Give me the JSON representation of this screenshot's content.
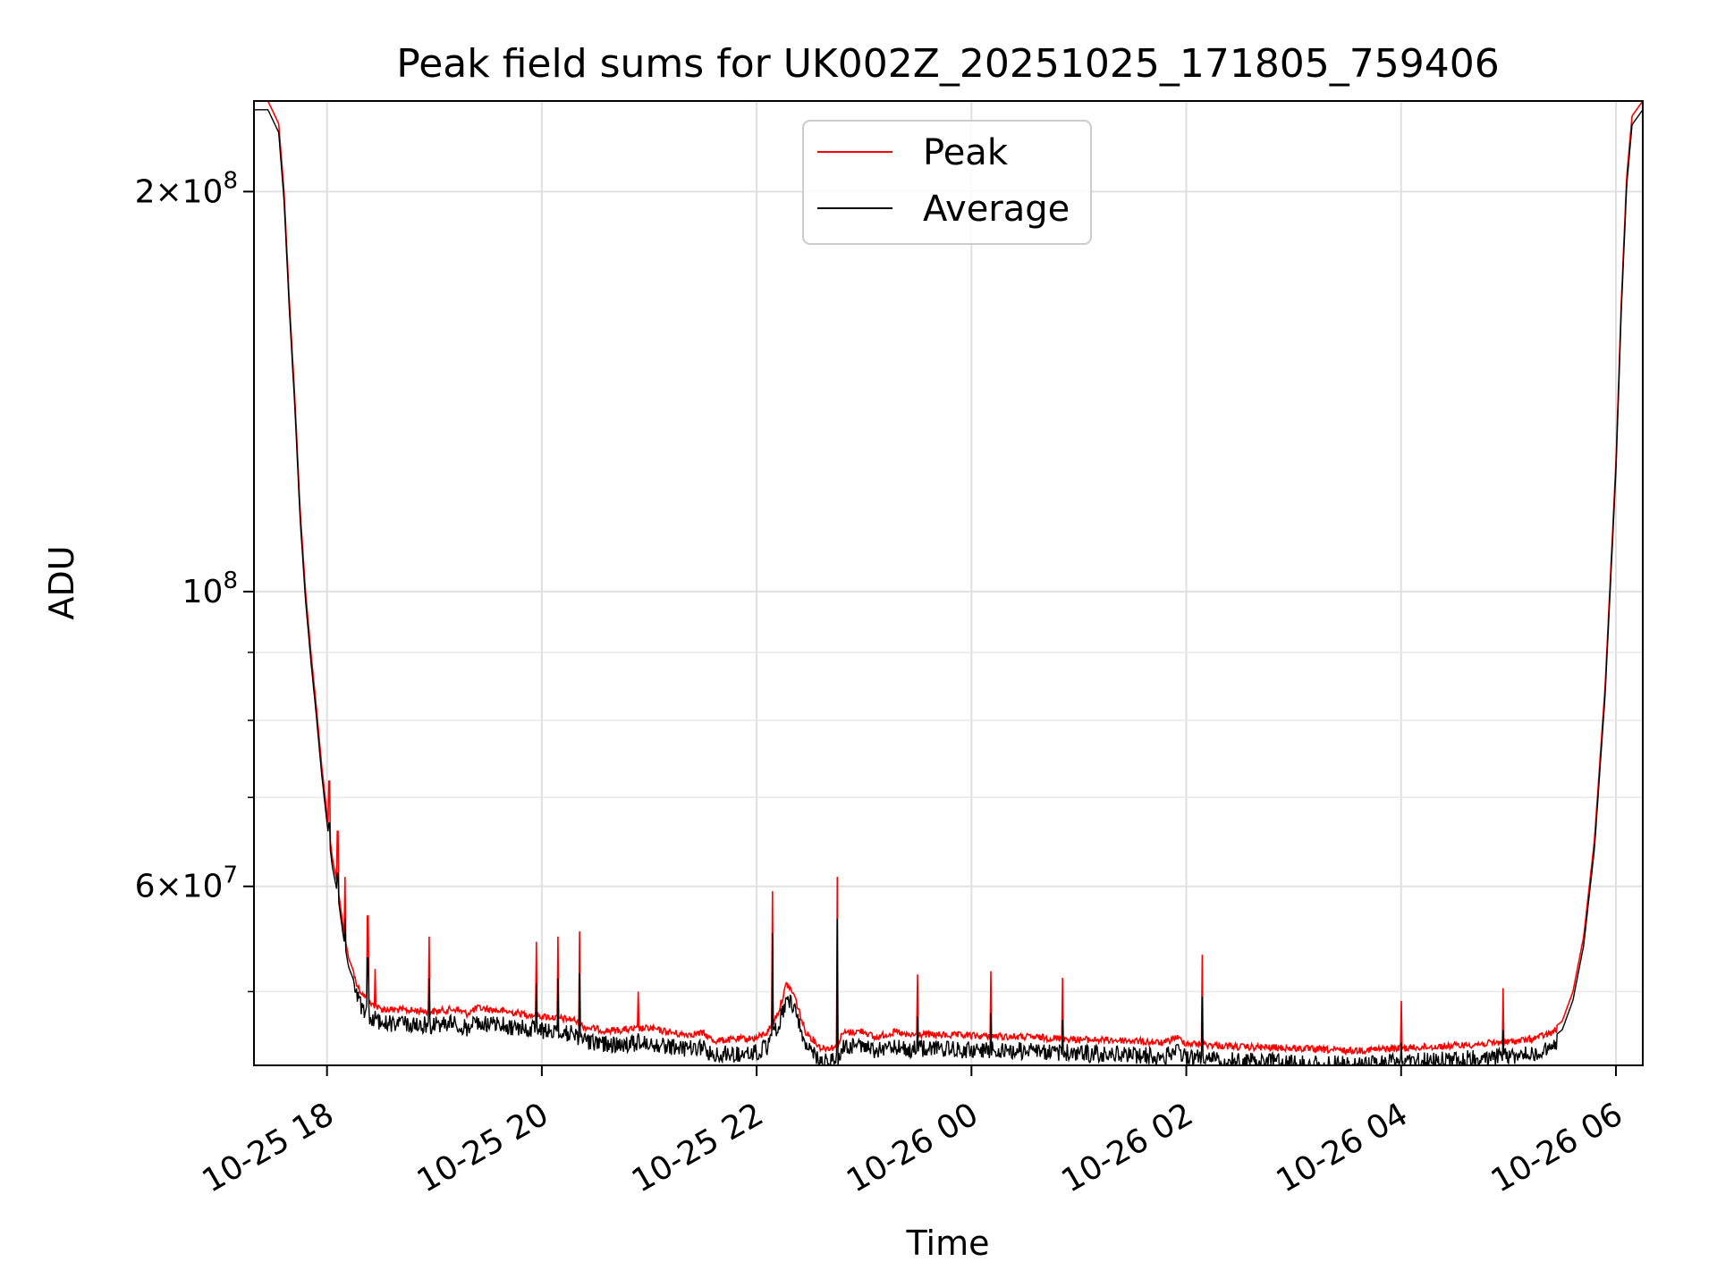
{
  "chart_data": {
    "type": "line",
    "title": "Peak field sums for UK002Z_20251025_171805_759406",
    "xlabel": "Time",
    "ylabel": "ADU",
    "yscale": "log",
    "ylim": [
      44000000,
      234000000
    ],
    "xlim_hours": [
      -0.68,
      12.25
    ],
    "grid": true,
    "legend_position": "top-center",
    "x_ticks": [
      {
        "label": "10-25 18",
        "hours": 0
      },
      {
        "label": "10-25 20",
        "hours": 2
      },
      {
        "label": "10-25 22",
        "hours": 4
      },
      {
        "label": "10-26 00",
        "hours": 6
      },
      {
        "label": "10-26 02",
        "hours": 8
      },
      {
        "label": "10-26 04",
        "hours": 10
      },
      {
        "label": "10-26 06",
        "hours": 12
      }
    ],
    "y_major_ticks": [
      {
        "value": 200000000,
        "mantissa": "2",
        "exponent": "8"
      },
      {
        "value": 100000000,
        "mantissa": "",
        "exponent": "8"
      },
      {
        "value": 60000000,
        "mantissa": "6",
        "exponent": "7"
      }
    ],
    "y_minor_ticks": [
      50000000,
      70000000,
      80000000,
      90000000
    ],
    "series": [
      {
        "name": "Peak",
        "color": "#ff0000",
        "baseline": [
          [
            -0.68,
            234000000
          ],
          [
            -0.55,
            234000000
          ],
          [
            -0.45,
            225000000
          ],
          [
            -0.4,
            200000000
          ],
          [
            -0.35,
            165000000
          ],
          [
            -0.3,
            140000000
          ],
          [
            -0.25,
            115000000
          ],
          [
            -0.2,
            100000000
          ],
          [
            -0.15,
            90000000
          ],
          [
            -0.1,
            82000000
          ],
          [
            -0.05,
            74000000
          ],
          [
            0,
            68000000
          ],
          [
            0.05,
            63000000
          ],
          [
            0.1,
            60000000
          ],
          [
            0.15,
            56000000
          ],
          [
            0.2,
            53000000
          ],
          [
            0.3,
            50500000
          ],
          [
            0.4,
            49300000
          ],
          [
            0.5,
            48800000
          ],
          [
            1.0,
            48600000
          ],
          [
            1.2,
            48800000
          ],
          [
            1.3,
            48400000
          ],
          [
            1.4,
            48900000
          ],
          [
            2.0,
            48200000
          ],
          [
            2.3,
            47900000
          ],
          [
            2.4,
            47300000
          ],
          [
            2.6,
            47000000
          ],
          [
            3.0,
            47200000
          ],
          [
            3.3,
            46700000
          ],
          [
            3.5,
            46800000
          ],
          [
            3.6,
            46200000
          ],
          [
            3.8,
            46300000
          ],
          [
            4.0,
            46400000
          ],
          [
            4.1,
            46900000
          ],
          [
            4.2,
            48500000
          ],
          [
            4.28,
            51000000
          ],
          [
            4.35,
            50000000
          ],
          [
            4.45,
            47000000
          ],
          [
            4.6,
            45600000
          ],
          [
            4.75,
            45700000
          ],
          [
            4.8,
            46800000
          ],
          [
            5.0,
            47000000
          ],
          [
            5.1,
            46400000
          ],
          [
            5.2,
            46700000
          ],
          [
            5.3,
            46900000
          ],
          [
            5.4,
            46600000
          ],
          [
            5.5,
            46700000
          ],
          [
            6.0,
            46600000
          ],
          [
            6.5,
            46500000
          ],
          [
            7.0,
            46300000
          ],
          [
            7.5,
            46200000
          ],
          [
            7.8,
            46000000
          ],
          [
            7.9,
            46500000
          ],
          [
            8.0,
            46000000
          ],
          [
            8.5,
            45700000
          ],
          [
            9.0,
            45600000
          ],
          [
            9.5,
            45400000
          ],
          [
            10.0,
            45600000
          ],
          [
            10.5,
            45800000
          ],
          [
            11.0,
            46100000
          ],
          [
            11.2,
            46300000
          ],
          [
            11.4,
            46800000
          ],
          [
            11.5,
            47500000
          ],
          [
            11.6,
            50000000
          ],
          [
            11.7,
            55000000
          ],
          [
            11.8,
            65000000
          ],
          [
            11.9,
            85000000
          ],
          [
            12.0,
            125000000
          ],
          [
            12.05,
            165000000
          ],
          [
            12.1,
            205000000
          ],
          [
            12.15,
            228000000
          ],
          [
            12.25,
            234000000
          ]
        ],
        "spikes": [
          [
            0.02,
            72000000
          ],
          [
            0.1,
            66000000
          ],
          [
            0.17,
            61000000
          ],
          [
            0.38,
            57000000
          ],
          [
            0.45,
            52000000
          ],
          [
            0.95,
            55000000
          ],
          [
            1.95,
            54500000
          ],
          [
            2.15,
            55000000
          ],
          [
            2.35,
            55500000
          ],
          [
            2.9,
            50000000
          ],
          [
            4.15,
            59500000
          ],
          [
            4.75,
            61000000
          ],
          [
            5.5,
            51500000
          ],
          [
            6.18,
            51800000
          ],
          [
            6.85,
            51200000
          ],
          [
            8.15,
            53300000
          ],
          [
            10.0,
            49200000
          ],
          [
            10.95,
            50300000
          ]
        ]
      },
      {
        "name": "Average",
        "color": "#000000",
        "offset_ratio": 0.985,
        "spike_ratio": 0.93
      }
    ]
  }
}
